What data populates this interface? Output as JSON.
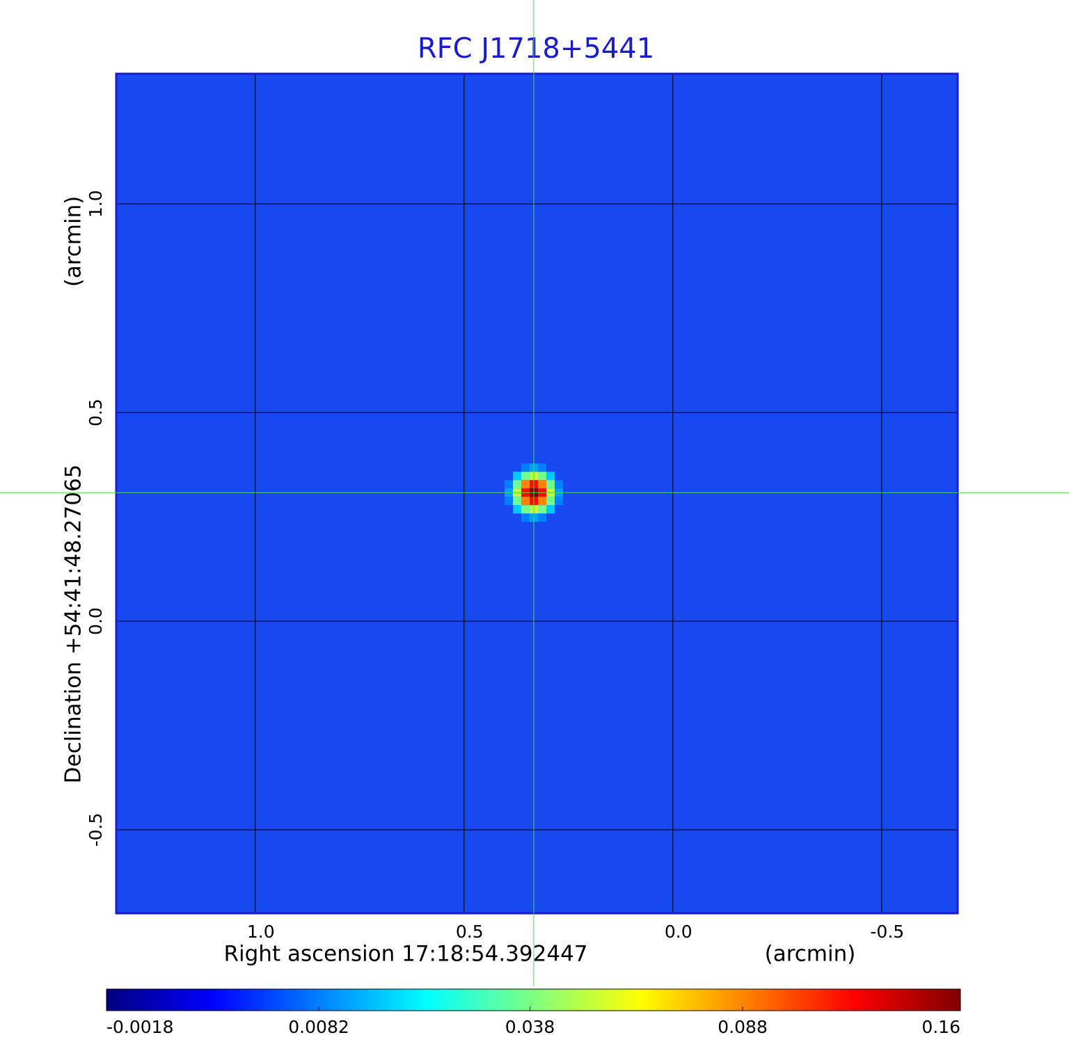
{
  "chart_data": {
    "type": "image",
    "title": "RFC J1718+5441",
    "x_label": "Right ascension  17:18:54.392447",
    "x_unit": "(arcmin)",
    "y_label": "Declination  +54:41:48.27065",
    "y_unit": "(arcmin)",
    "xlim": [
      1.333,
      -0.682
    ],
    "ylim": [
      -0.7,
      1.312
    ],
    "xticks": [
      {
        "value": 1.0,
        "label": "1.0"
      },
      0.5,
      {
        "value": 0.0,
        "label": "0.0"
      },
      -0.5
    ],
    "yticks": [
      -0.5,
      {
        "value": 0.0,
        "label": "0.0"
      },
      0.5,
      {
        "value": 1.0,
        "label": "1.0"
      }
    ],
    "grid": true,
    "peak": {
      "x": 0.333,
      "y": 0.308,
      "value": 0.16
    },
    "crosshair": {
      "x": 0.333,
      "y": 0.308
    },
    "colormap": "jet",
    "colorbar_scale": "sqrt",
    "clim": [
      -0.0018,
      0.16
    ],
    "colorbar_ticks": [
      -0.0018,
      0.0082,
      0.038,
      0.088,
      0.16
    ]
  }
}
